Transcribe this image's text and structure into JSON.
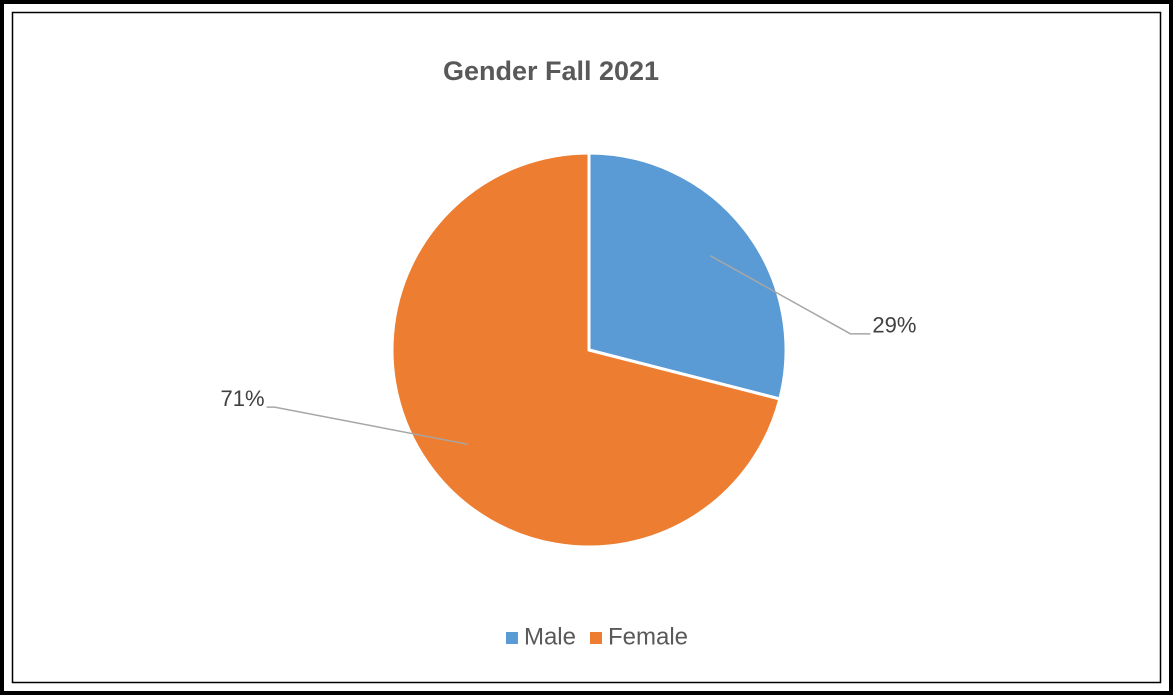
{
  "chart_data": {
    "type": "pie",
    "title": "Gender Fall 2021",
    "categories": [
      "Male",
      "Female"
    ],
    "values": [
      29,
      71
    ],
    "value_labels": [
      "29%",
      "71%"
    ],
    "colors": [
      "#5b9bd5",
      "#ed7d31"
    ],
    "legend": "bottom"
  }
}
